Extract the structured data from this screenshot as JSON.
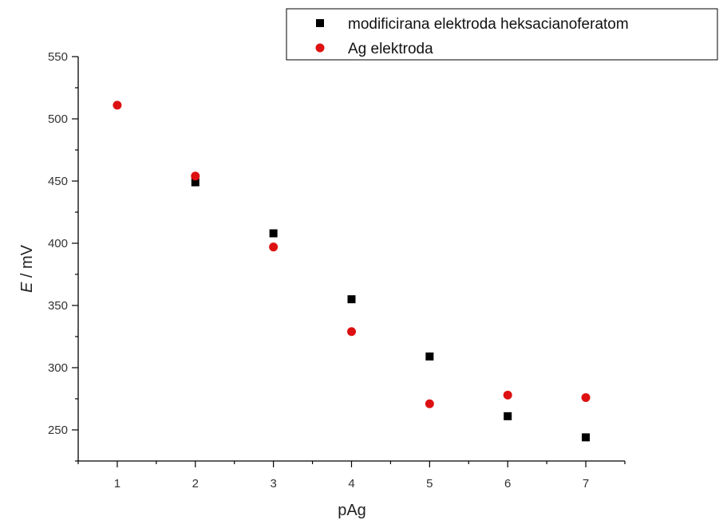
{
  "chart_data": {
    "type": "scatter",
    "xlabel": "pAg",
    "ylabel_italic": "E",
    "ylabel_unit": " / mV",
    "xlim": [
      0.5,
      7.5
    ],
    "ylim": [
      225,
      550
    ],
    "x_ticks": [
      1,
      2,
      3,
      4,
      5,
      6,
      7
    ],
    "y_ticks": [
      250,
      300,
      350,
      400,
      450,
      500,
      550
    ],
    "grid": false,
    "legend_position": "top-right",
    "series": [
      {
        "name": "modificirana elektroda heksacianoferatom",
        "marker": "square",
        "color": "#000000",
        "x": [
          2,
          3,
          4,
          5,
          6,
          7
        ],
        "y": [
          449,
          408,
          355,
          309,
          261,
          244
        ]
      },
      {
        "name": "Ag elektroda",
        "marker": "circle",
        "color": "#dd1111",
        "x": [
          1,
          2,
          3,
          4,
          5,
          6,
          7
        ],
        "y": [
          511,
          454,
          397,
          329,
          271,
          278,
          276
        ]
      }
    ]
  }
}
